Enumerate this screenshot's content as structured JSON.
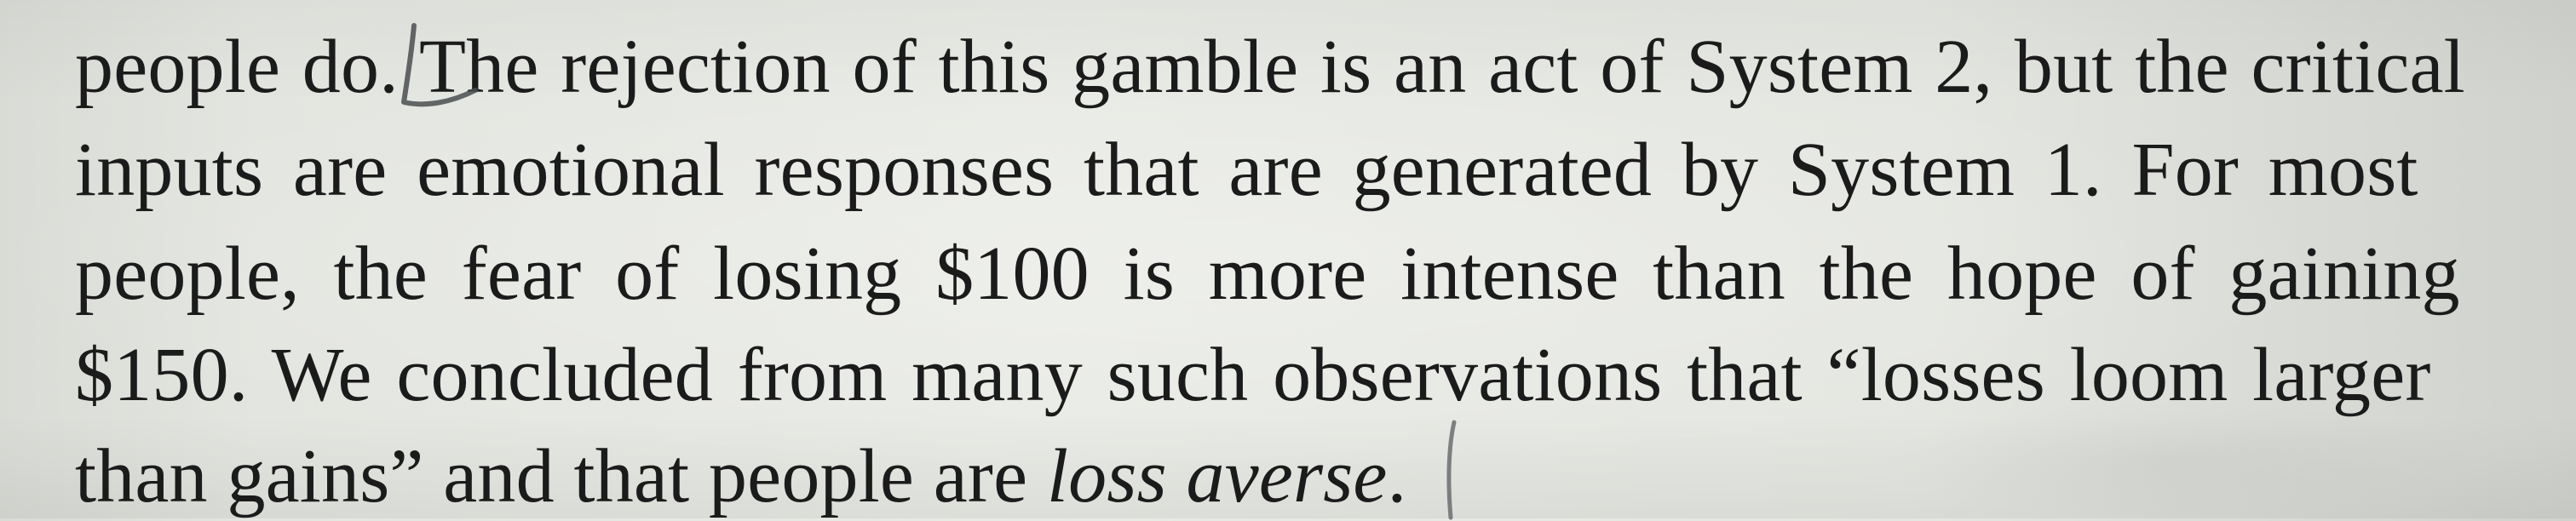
{
  "page": {
    "background": "#e6e8e3",
    "text_color": "#1b1b1b",
    "pen_color": "#4a4d50"
  },
  "paragraph": {
    "line1": "people do. The rejection of this gamble is an act of System 2, but the critical",
    "line2": "inputs are emotional responses that are generated by System 1. For most",
    "line3": "people, the fear of losing $100 is more intense than the hope of gaining",
    "line4": "$150. We concluded from many such observations that “losses loom larger",
    "line5_regular": "than gains” and that people are ",
    "line5_italic": "loss averse",
    "line5_end": "."
  },
  "annotations": {
    "bracket_mark": "pen-bracket-icon",
    "margin_mark": "pen-stroke-icon"
  }
}
